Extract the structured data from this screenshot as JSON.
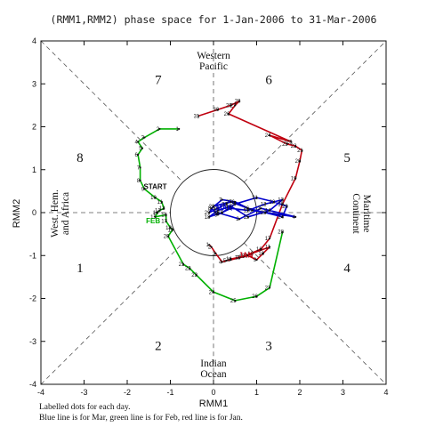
{
  "chart_data": {
    "type": "line",
    "title": "(RMM1,RMM2) phase space for   1-Jan-2006 to 31-Mar-2006",
    "xlabel": "RMM1",
    "ylabel": "RMM2",
    "xlim": [
      -4,
      4
    ],
    "ylim": [
      -4,
      4
    ],
    "xticks": [
      "-4",
      "-3",
      "-2",
      "-1",
      "0",
      "1",
      "2",
      "3",
      "4"
    ],
    "yticks": [
      "-4",
      "-3",
      "-2",
      "-1",
      "0",
      "1",
      "2",
      "3",
      "4"
    ],
    "grid": false,
    "unit_circle_radius": 1,
    "phases": [
      "1",
      "2",
      "3",
      "4",
      "5",
      "6",
      "7",
      "8"
    ],
    "regions": {
      "top": [
        "Western",
        "Pacific"
      ],
      "bottom": [
        "Indian",
        "Ocean"
      ],
      "left": [
        "West. Hem.",
        "and Africa"
      ],
      "right": [
        "Maritime",
        "Continent"
      ]
    },
    "series": [
      {
        "name": "Jan",
        "color": "#c0000f",
        "labels": [
          "1",
          "2",
          "3",
          "4",
          "5",
          "6",
          "7",
          "8",
          "9",
          "10",
          "11",
          "12",
          "13",
          "14",
          "15",
          "16",
          "17",
          "18",
          "19",
          "20",
          "21",
          "22",
          "23",
          "24",
          "25",
          "26",
          "27",
          "28",
          "29",
          "30",
          "31"
        ],
        "x": [
          -0.1,
          -0.05,
          0.05,
          0.2,
          0.3,
          0.4,
          0.6,
          0.8,
          1.0,
          1.15,
          1.3,
          0.9,
          0.6,
          0.4,
          0.7,
          1.1,
          1.3,
          1.6,
          1.9,
          2.0,
          2.05,
          1.9,
          1.7,
          1.3,
          1.8,
          0.35,
          0.5,
          0.6,
          0.4,
          0.1,
          -0.35
        ],
        "y": [
          -0.75,
          -0.8,
          -0.95,
          -1.15,
          -1.12,
          -1.1,
          -1.05,
          -1.0,
          -1.1,
          -0.95,
          -0.8,
          -0.95,
          -1.05,
          -1.08,
          -1.02,
          -0.85,
          -0.6,
          0.2,
          0.8,
          1.2,
          1.45,
          1.55,
          1.6,
          1.8,
          1.65,
          2.3,
          2.5,
          2.6,
          2.5,
          2.4,
          2.25
        ]
      },
      {
        "name": "Feb",
        "color": "#00b000",
        "labels": [
          "1",
          "2",
          "3",
          "4",
          "5",
          "6",
          "7",
          "8",
          "9",
          "10",
          "11",
          "12",
          "13",
          "14",
          "15",
          "16",
          "17",
          "18",
          "19",
          "20",
          "21",
          "22",
          "23",
          "24",
          "25",
          "26",
          "27",
          "28"
        ],
        "x": [
          -0.8,
          -1.25,
          -1.6,
          -1.75,
          -1.65,
          -1.75,
          -1.7,
          -1.7,
          -1.6,
          -1.35,
          -1.2,
          -1.15,
          -1.25,
          -1.3,
          -1.35,
          -1.1,
          -1.1,
          -1.0,
          -0.95,
          -1.05,
          -0.7,
          -0.55,
          -0.4,
          0.0,
          0.5,
          1.0,
          1.3,
          1.6
        ],
        "y": [
          1.95,
          1.95,
          1.75,
          1.65,
          1.5,
          1.35,
          1.05,
          0.75,
          0.55,
          0.35,
          0.25,
          0.1,
          0.05,
          0.0,
          -0.1,
          -0.05,
          -0.2,
          -0.35,
          -0.4,
          -0.55,
          -1.2,
          -1.3,
          -1.45,
          -1.85,
          -2.05,
          -1.95,
          -1.75,
          -0.45
        ]
      },
      {
        "name": "Mar",
        "color": "#0000cc",
        "labels": [
          "1",
          "2",
          "3",
          "4",
          "5",
          "6",
          "7",
          "8",
          "9",
          "10",
          "11",
          "12",
          "13",
          "14",
          "15",
          "16",
          "17",
          "18",
          "19",
          "20",
          "21",
          "22",
          "23",
          "24",
          "25",
          "26",
          "27",
          "28",
          "29",
          "30",
          "31"
        ],
        "x": [
          0.1,
          0.6,
          1.1,
          1.9,
          0.9,
          0.5,
          0.2,
          -0.05,
          0.1,
          0.4,
          0.8,
          1.2,
          1.6,
          1.3,
          0.8,
          0.4,
          0.1,
          -0.1,
          0.2,
          0.5,
          1.0,
          1.4,
          1.7,
          1.6,
          1.2,
          0.8,
          0.4,
          0.0,
          -0.1,
          0.1,
          0.3
        ],
        "y": [
          0.0,
          -0.15,
          0.1,
          -0.1,
          0.05,
          0.25,
          0.3,
          0.1,
          -0.05,
          0.1,
          0.05,
          0.2,
          0.3,
          0.05,
          -0.1,
          0.15,
          0.05,
          -0.1,
          0.0,
          0.2,
          0.35,
          0.25,
          0.15,
          -0.1,
          0.0,
          0.1,
          0.25,
          0.15,
          0.0,
          0.1,
          0.2
        ]
      }
    ],
    "markers": [
      {
        "text": "START",
        "x": -1.35,
        "y": 0.55,
        "color": "#111111"
      },
      {
        "text": "JAN",
        "x": 0.75,
        "y": -1.05,
        "color": "#c0000f"
      },
      {
        "text": "FEB",
        "x": -1.4,
        "y": -0.25,
        "color": "#00b000"
      },
      {
        "text": "MAR",
        "x": 0.25,
        "y": 0.05,
        "color": "#0000cc"
      }
    ],
    "footer": [
      "Labelled dots for each day.",
      "Blue line is for Mar, green line is for Feb, red line is for Jan."
    ]
  }
}
